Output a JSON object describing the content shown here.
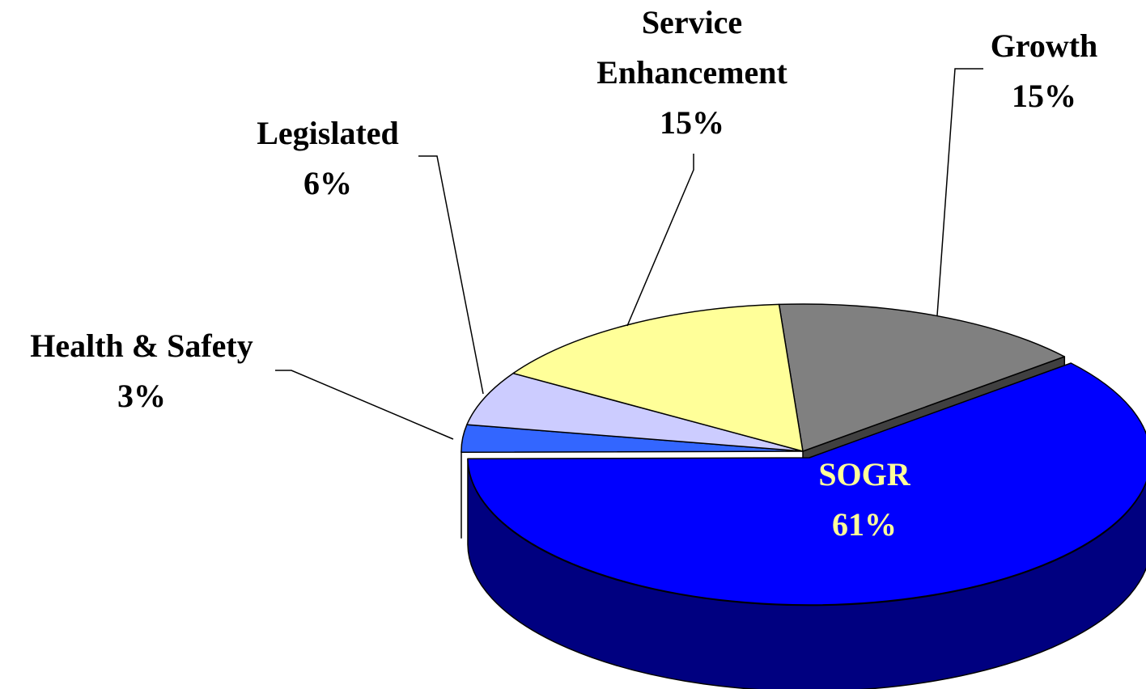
{
  "chart_data": {
    "type": "pie",
    "categories": [
      "Growth",
      "SOGR",
      "Health & Safety",
      "Legislated",
      "Service Enhancement"
    ],
    "values": [
      15,
      61,
      3,
      6,
      15
    ],
    "value_labels": [
      "15%",
      "61%",
      "3%",
      "6%",
      "15%"
    ],
    "colors": [
      "#808080",
      "#0000ff",
      "#3366ff",
      "#ccccff",
      "#ffff99"
    ]
  }
}
